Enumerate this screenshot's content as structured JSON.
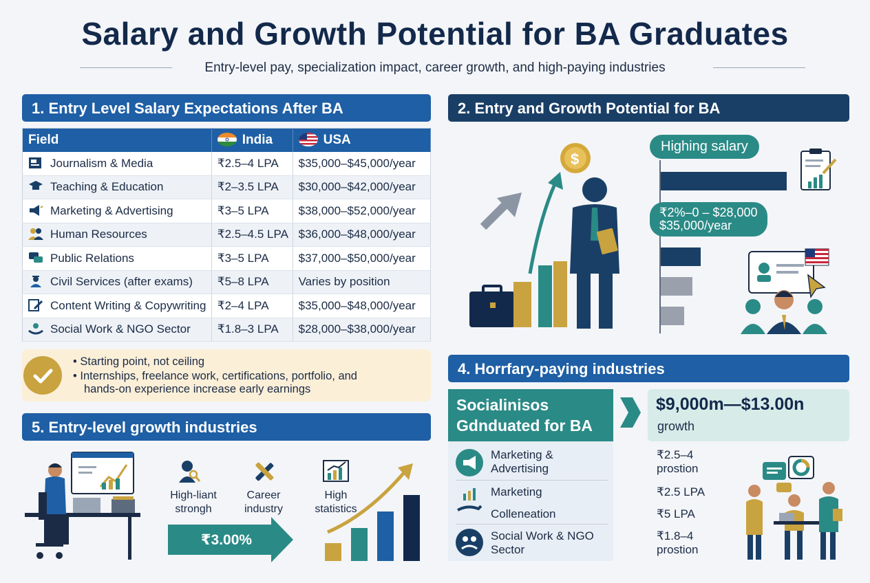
{
  "header": {
    "title": "Salary and Growth Potential for BA Graduates",
    "subtitle": "Entry-level pay, specialization impact, career growth, and high-paying industries"
  },
  "section1": {
    "title": "1. Entry Level Salary Expectations After BA",
    "columns": [
      "Field",
      "India",
      "USA"
    ],
    "rows": [
      {
        "field": "Journalism & Media",
        "india": "₹2.5–4 LPA",
        "usa": "$35,000–$45,000/year",
        "icon": "newspaper-icon"
      },
      {
        "field": "Teaching & Education",
        "india": "₹2–3.5 LPA",
        "usa": "$30,000–$42,000/year",
        "icon": "graduation-cap-icon"
      },
      {
        "field": "Marketing & Advertising",
        "india": "₹3–5 LPA",
        "usa": "$38,000–$52,000/year",
        "icon": "megaphone-icon"
      },
      {
        "field": "Human Resources",
        "india": "₹2.5–4.5 LPA",
        "usa": "$36,000–$48,000/year",
        "icon": "people-icon"
      },
      {
        "field": "Public Relations",
        "india": "₹3–5 LPA",
        "usa": "$37,000–$50,000/year",
        "icon": "chat-bubbles-icon"
      },
      {
        "field": "Civil Services (after exams)",
        "india": "₹5–8 LPA",
        "usa": "Varies by position",
        "icon": "officer-icon"
      },
      {
        "field": "Content Writing & Copywriting",
        "india": "₹2–4 LPA",
        "usa": "$35,000–$48,000/year",
        "icon": "pen-document-icon"
      },
      {
        "field": "Social Work & NGO Sector",
        "india": "₹1.8–3 LPA",
        "usa": "$28,000–$38,000/year",
        "icon": "helping-hands-icon"
      }
    ]
  },
  "notes": {
    "line1": "• Starting point, not ceiling",
    "line2": "• Internships, freelance work, certifications, portfolio, and",
    "line3": "hands-on experience increase early earnings"
  },
  "section2": {
    "title": "2. Entry and Growth Potential for BA",
    "pill1": "Highing salary",
    "pill2_line1": "₹2%–0 – $28,000",
    "pill2_line2": "$35,000/year"
  },
  "section4": {
    "title": "4. Horrfary-paying industries",
    "box_title_line1": "Socialinisos",
    "box_title_line2": "Gdnduated for BA",
    "growth_value": "$9,000m—$13.00n",
    "growth_label": "growth",
    "industries": [
      {
        "line1": "Marketing &",
        "line2": "Advertising",
        "value1": "₹2.5–4",
        "value2": "prostion",
        "icon": "megaphone-icon"
      },
      {
        "line1": "Marketing",
        "line2": "",
        "value1": "₹2.5 LPA",
        "value2": "",
        "icon": "growth-hand-icon"
      },
      {
        "line1": "Colleneation",
        "line2": "",
        "value1": "₹5 LPA",
        "value2": "",
        "icon": "none"
      },
      {
        "line1": "Social Work & NGO",
        "line2": "Sector",
        "value1": "₹1.8–4",
        "value2": "prostion",
        "icon": "helping-hands-icon"
      }
    ]
  },
  "section5": {
    "title": "5. Entry-level growth industries",
    "items": [
      {
        "line1": "High-liant",
        "line2": "strongh",
        "icon": "person-search-icon"
      },
      {
        "line1": "Career",
        "line2": "industry",
        "icon": "tools-icon"
      },
      {
        "line1": "High",
        "line2": "statistics",
        "icon": "chart-icon"
      }
    ],
    "growth_value": "₹3.00%"
  },
  "colors": {
    "navy": "#13294b",
    "blue": "#1e5fa5",
    "teal": "#2a8a86",
    "gold": "#c9a33f",
    "cream": "#fbefd8"
  }
}
